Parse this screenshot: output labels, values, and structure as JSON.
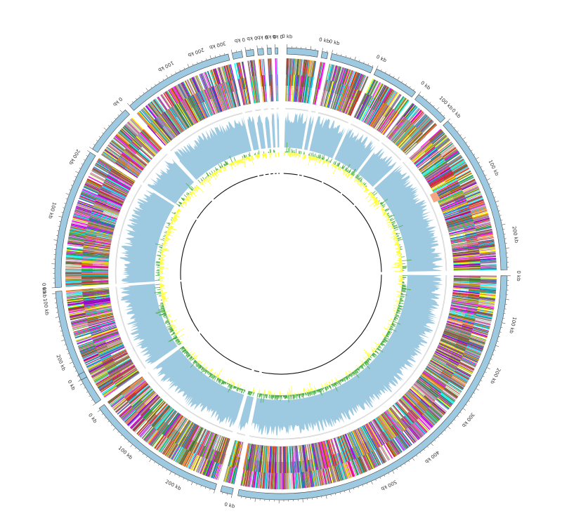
{
  "figure": {
    "colors": {
      "ideogram": "#9ecae1",
      "ideogram_stroke": "#444444",
      "coverage": "#9ecae1",
      "gc_positive": "#4daf4a",
      "gc_negative": "#ffff33",
      "gridline": "#cccccc",
      "inner_ring": "#111111",
      "highlight": "#f4a582"
    },
    "gene_palette": [
      "#8c564b",
      "#7f7f7f",
      "#9467bd",
      "#e377c2",
      "#bcbd22",
      "#17becf",
      "#d62728",
      "#ff00ff",
      "#9400d3",
      "#ffff00",
      "#00ffff",
      "#a0522d",
      "#ff7f0e",
      "#2ca02c",
      "#1f77b4",
      "#c49c94",
      "#999999",
      "#556b2f"
    ],
    "contigs": [
      {
        "start_deg": 1.5,
        "span_deg": 8.0,
        "labels": [
          {
            "offset_deg": 0,
            "text": "0 kb"
          }
        ]
      },
      {
        "start_deg": 10.5,
        "span_deg": 1.5,
        "labels": [
          {
            "offset_deg": 0,
            "text": "0 kb"
          }
        ]
      },
      {
        "start_deg": 13.0,
        "span_deg": 11.0,
        "labels": [
          {
            "offset_deg": 0,
            "text": "0 kb"
          }
        ]
      },
      {
        "start_deg": 25.0,
        "span_deg": 11.5,
        "labels": [
          {
            "offset_deg": 0,
            "text": "0 kb"
          }
        ]
      },
      {
        "start_deg": 37.5,
        "span_deg": 9.0,
        "labels": [
          {
            "offset_deg": 0,
            "text": "0 kb"
          },
          {
            "offset_deg": 6.5,
            "text": "100 kb"
          }
        ]
      },
      {
        "start_deg": 47.5,
        "span_deg": 41.5,
        "labels": [
          {
            "offset_deg": 0,
            "text": "0 kb"
          },
          {
            "offset_deg": 16,
            "text": "100 kb"
          },
          {
            "offset_deg": 33,
            "text": "200 kb"
          }
        ]
      },
      {
        "start_deg": 90.5,
        "span_deg": 100.5,
        "labels": [
          {
            "offset_deg": 0,
            "text": "0 kb"
          },
          {
            "offset_deg": 12,
            "text": "100 kb"
          },
          {
            "offset_deg": 25,
            "text": "200 kb"
          },
          {
            "offset_deg": 37.5,
            "text": "300 kb"
          },
          {
            "offset_deg": 50,
            "text": "400 kb"
          },
          {
            "offset_deg": 62.5,
            "text": "500 kb"
          }
        ]
      },
      {
        "start_deg": 192.5,
        "span_deg": 3.0,
        "labels": [
          {
            "offset_deg": 0,
            "text": "0 kb"
          }
        ]
      },
      {
        "start_deg": 197.0,
        "span_deg": 36.5,
        "labels": [
          {
            "offset_deg": 10,
            "text": "200 kb"
          },
          {
            "offset_deg": 24,
            "text": "100 kb"
          },
          {
            "offset_deg": 35.5,
            "text": "0 kb"
          }
        ]
      },
      {
        "start_deg": 235.0,
        "span_deg": 30.5,
        "labels": [
          {
            "offset_deg": 13,
            "text": "200 kb"
          },
          {
            "offset_deg": 27,
            "text": "100 kb"
          },
          {
            "offset_deg": 30.5,
            "text": "0 kb"
          }
        ]
      },
      {
        "start_deg": 242.0,
        "span_deg": 1.5,
        "labels": [
          {
            "offset_deg": 0,
            "text": "0 kb"
          }
        ]
      },
      {
        "start_deg": 266.5,
        "span_deg": 36.0,
        "labels": [
          {
            "offset_deg": 0,
            "text": "0 kb"
          },
          {
            "offset_deg": 19,
            "text": "100 kb"
          },
          {
            "offset_deg": 33,
            "text": "200 kb"
          }
        ]
      },
      {
        "start_deg": 303.5,
        "span_deg": 13.0,
        "labels": [
          {
            "offset_deg": 13,
            "text": "0 kb"
          }
        ]
      },
      {
        "start_deg": 318.0,
        "span_deg": 28.5,
        "labels": [
          {
            "offset_deg": 13,
            "text": "100 kb"
          },
          {
            "offset_deg": 21,
            "text": "200 kb"
          },
          {
            "offset_deg": 26.5,
            "text": "300 kb"
          }
        ]
      },
      {
        "start_deg": 347.5,
        "span_deg": 2.5,
        "labels": [
          {
            "offset_deg": 2.5,
            "text": "0 kb"
          }
        ]
      },
      {
        "start_deg": 351.0,
        "span_deg": 2.0,
        "labels": [
          {
            "offset_deg": 2.0,
            "text": "0 kb"
          }
        ]
      },
      {
        "start_deg": 354.0,
        "span_deg": 1.5,
        "labels": [
          {
            "offset_deg": 1.5,
            "text": "0 kb"
          }
        ]
      },
      {
        "start_deg": 356.5,
        "span_deg": 1.0,
        "labels": [
          {
            "offset_deg": 1.0,
            "text": "0 kb"
          }
        ]
      },
      {
        "start_deg": 358.5,
        "span_deg": 0.7,
        "labels": [
          {
            "offset_deg": 0.7,
            "text": "0 kb"
          }
        ]
      }
    ]
  }
}
